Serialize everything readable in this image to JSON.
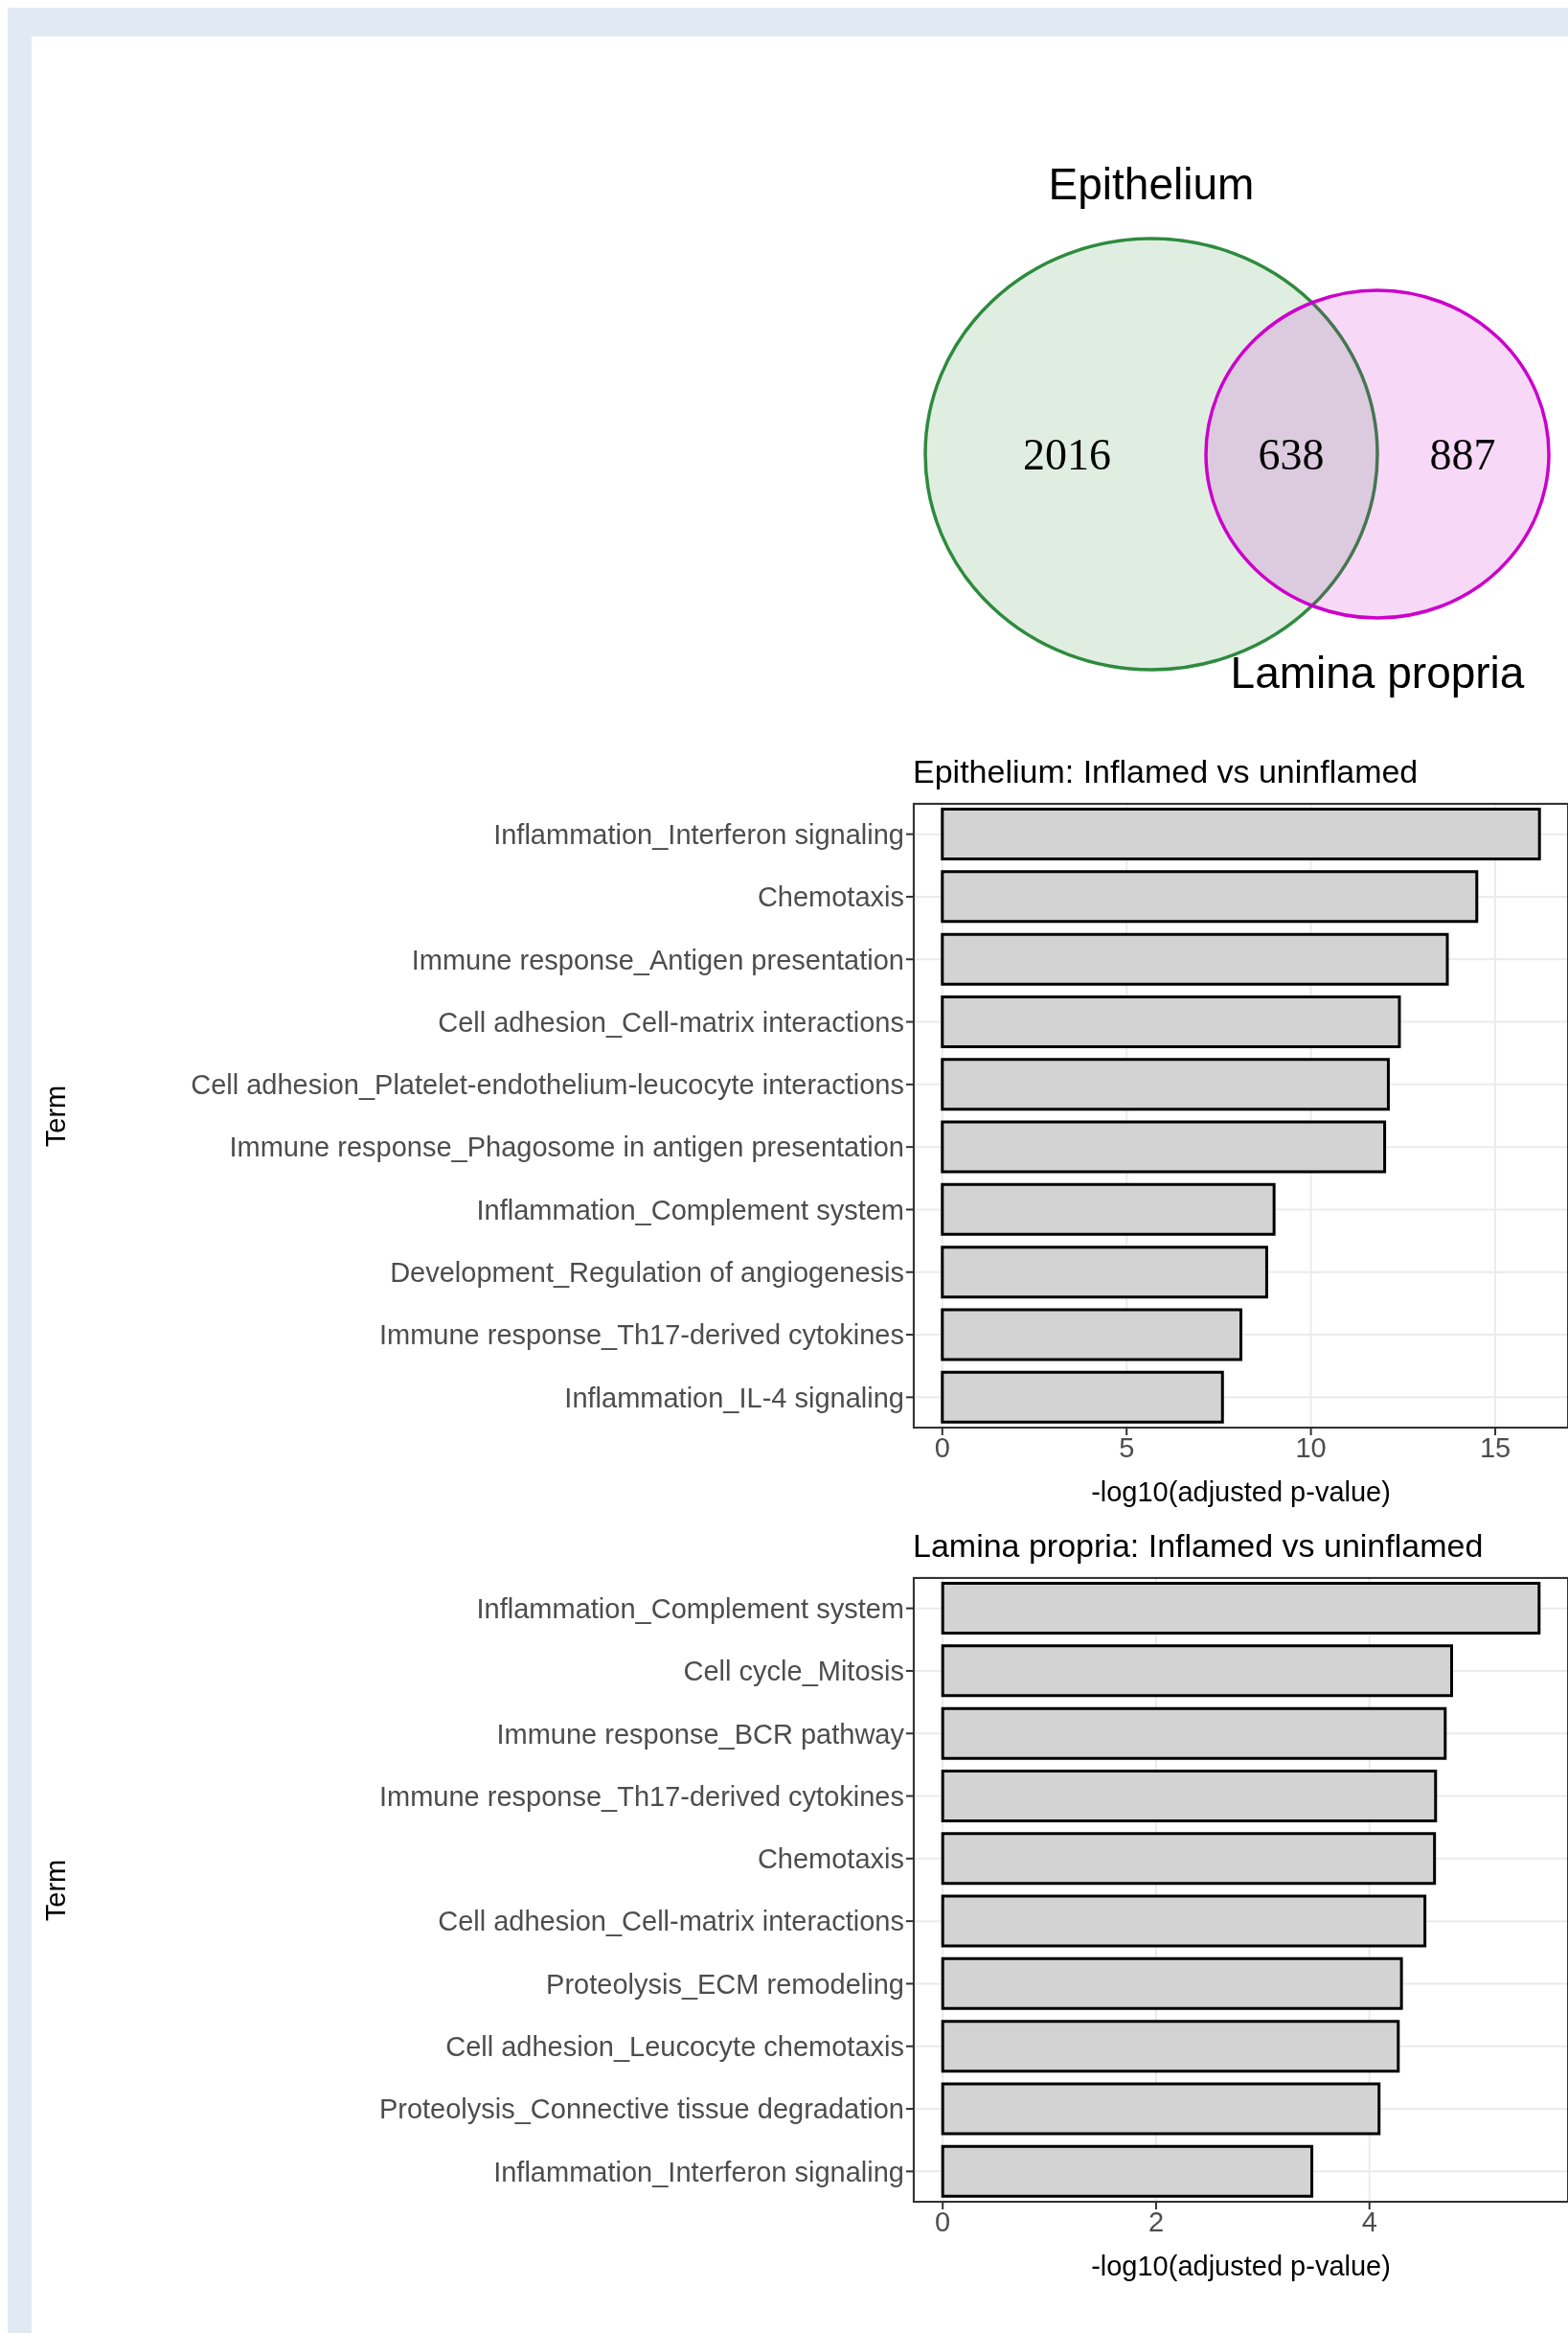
{
  "chart_data": [
    {
      "type": "other",
      "annotations": [
        "Epithelium",
        "2016",
        "638",
        "887",
        "Lamina propria"
      ]
    },
    {
      "type": "bar",
      "orientation": "horizontal",
      "title": "Epithelium: Inflamed vs uninflamed",
      "xlabel": "-log10(adjusted p-value)",
      "ylabel": "Term",
      "categories": [
        "Inflammation_Interferon signaling",
        "Chemotaxis",
        "Immune response_Antigen presentation",
        "Cell adhesion_Cell-matrix interactions",
        "Cell adhesion_Platelet-endothelium-leucocyte interactions",
        "Immune response_Phagosome in antigen presentation",
        "Inflammation_Complement system",
        "Development_Regulation of angiogenesis",
        "Immune response_Th17-derived cytokines",
        "Inflammation_IL-4 signaling"
      ],
      "values": [
        16.2,
        14.5,
        13.7,
        12.4,
        12.1,
        12.0,
        9.0,
        8.8,
        8.1,
        7.6
      ],
      "color": "#d3d3d3",
      "xlim": [
        -0.8,
        17.0
      ],
      "xticks": [
        0,
        5,
        10,
        15
      ],
      "grid": true
    },
    {
      "type": "bar",
      "orientation": "horizontal",
      "title": "Lamina propria: Inflamed vs uninflamed",
      "xlabel": "-log10(adjusted p-value)",
      "ylabel": "Term",
      "categories": [
        "Inflammation_Complement system",
        "Cell cycle_Mitosis",
        "Immune response_BCR pathway",
        "Immune response_Th17-derived cytokines",
        "Chemotaxis",
        "Cell adhesion_Cell-matrix interactions",
        "Proteolysis_ECM remodeling",
        "Cell adhesion_Leucocyte chemotaxis",
        "Proteolysis_Connective tissue degradation",
        "Inflammation_Interferon signaling"
      ],
      "values": [
        5.59,
        4.77,
        4.71,
        4.62,
        4.61,
        4.52,
        4.3,
        4.27,
        4.09,
        3.46
      ],
      "color": "#d3d3d3",
      "xlim": [
        -0.28,
        5.87
      ],
      "xticks": [
        0,
        2,
        4
      ],
      "grid": true
    }
  ]
}
